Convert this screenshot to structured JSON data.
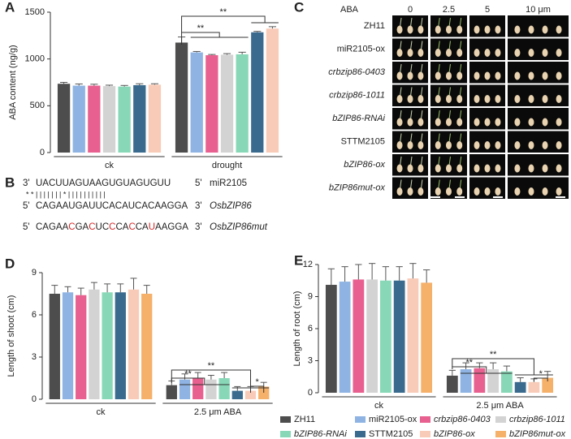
{
  "panel_labels": [
    "A",
    "B",
    "C",
    "D",
    "E"
  ],
  "sequences": {
    "mirna": {
      "prefix": "3'",
      "seq": "UACUUAGUAAGUGUAGUGUU",
      "suffix": "5'",
      "name": "miR2105"
    },
    "pairing": "* * | | | | | | | * | | | | | | | | | |",
    "target": {
      "prefix": "5'",
      "seq": "CAGAAUGAUUCACAUCACAAGGA",
      "suffix": "3'",
      "name": "OsbZIP86"
    },
    "mutant": {
      "prefix": "5'",
      "segments": [
        "CAGAA",
        "C",
        "GA",
        "C",
        "UC",
        "C",
        "CA",
        "C",
        "CA",
        "U",
        "AAGGA"
      ],
      "suffix": "3'",
      "name": "OsbZIP86mut"
    }
  },
  "photo_panel": {
    "header": "ABA",
    "columns": [
      "0",
      "2.5",
      "5",
      "10 μm"
    ],
    "rows": [
      "ZH11",
      "miR2105-ox",
      "crbzip86-0403",
      "crbzip86-1011",
      "bZIP86-RNAi",
      "STTM2105",
      "bZIP86-ox",
      "bZIP86mut-ox"
    ]
  },
  "chart_data": [
    {
      "type": "bar",
      "y_label": "ABA content (ng/g)",
      "categories": [
        "ck",
        "drought"
      ],
      "ylim": [
        0,
        1500
      ],
      "yticks": [
        0,
        500,
        1000,
        1500
      ],
      "annotations": [
        "**",
        "**"
      ],
      "series": [
        {
          "color": "#4d4d4d",
          "values": [
            735,
            1175
          ],
          "errors": [
            15,
            60
          ]
        },
        {
          "color": "#8fb4e3",
          "values": [
            715,
            1070
          ],
          "errors": [
            18,
            10
          ]
        },
        {
          "color": "#e8608f",
          "values": [
            715,
            1040
          ],
          "errors": [
            15,
            8
          ]
        },
        {
          "color": "#d3d3d3",
          "values": [
            710,
            1045
          ],
          "errors": [
            10,
            12
          ]
        },
        {
          "color": "#88d8b8",
          "values": [
            705,
            1050
          ],
          "errors": [
            12,
            22
          ]
        },
        {
          "color": "#3a6a8e",
          "values": [
            720,
            1285
          ],
          "errors": [
            15,
            10
          ]
        },
        {
          "color": "#f8cbb8",
          "values": [
            725,
            1325
          ],
          "errors": [
            10,
            20
          ]
        }
      ]
    },
    {
      "type": "bar",
      "y_label": "Length of shoot (cm)",
      "categories": [
        "ck",
        "2.5 μm ABA"
      ],
      "ylim": [
        0,
        9
      ],
      "yticks": [
        0,
        3,
        6,
        9
      ],
      "annotations": [
        "**",
        "**",
        "*"
      ],
      "series": [
        {
          "name": "ZH11",
          "color": "#4d4d4d",
          "values": [
            7.5,
            1.0
          ],
          "errors": [
            0.6,
            0.3
          ]
        },
        {
          "name": "miR2105-ox",
          "color": "#8fb4e3",
          "values": [
            7.6,
            1.4
          ],
          "errors": [
            0.4,
            0.4
          ]
        },
        {
          "name": "crbzip86-0403",
          "color": "#e8608f",
          "values": [
            7.4,
            1.5
          ],
          "errors": [
            0.5,
            0.4
          ]
        },
        {
          "name": "crbzip86-1011",
          "color": "#d3d3d3",
          "values": [
            7.8,
            1.4
          ],
          "errors": [
            0.5,
            0.3
          ]
        },
        {
          "name": "bZIP86-RNAi",
          "color": "#88d8b8",
          "values": [
            7.6,
            1.5
          ],
          "errors": [
            0.6,
            0.4
          ]
        },
        {
          "name": "STTM2105",
          "color": "#3a6a8e",
          "values": [
            7.6,
            0.6
          ],
          "errors": [
            0.6,
            0.3
          ]
        },
        {
          "name": "bZIP86-ox",
          "color": "#f8cbb8",
          "values": [
            7.8,
            0.6
          ],
          "errors": [
            0.8,
            0.3
          ]
        },
        {
          "name": "bZIP86mut-ox",
          "color": "#f5b06a",
          "values": [
            7.5,
            0.9
          ],
          "errors": [
            0.6,
            0.3
          ]
        }
      ]
    },
    {
      "type": "bar",
      "y_label": "Length of root (cm)",
      "categories": [
        "ck",
        "2.5 μm ABA"
      ],
      "ylim": [
        0,
        12
      ],
      "yticks": [
        0,
        3,
        6,
        9,
        12
      ],
      "annotations": [
        "**",
        "**",
        "*"
      ],
      "series": [
        {
          "color": "#4d4d4d",
          "values": [
            10.1,
            1.6
          ],
          "errors": [
            1.5,
            0.5
          ]
        },
        {
          "color": "#8fb4e3",
          "values": [
            10.4,
            2.2
          ],
          "errors": [
            1.4,
            0.6
          ]
        },
        {
          "color": "#e8608f",
          "values": [
            10.6,
            2.3
          ],
          "errors": [
            1.4,
            0.5
          ]
        },
        {
          "color": "#d3d3d3",
          "values": [
            10.6,
            2.2
          ],
          "errors": [
            1.5,
            0.6
          ]
        },
        {
          "color": "#88d8b8",
          "values": [
            10.5,
            2.0
          ],
          "errors": [
            1.3,
            0.5
          ]
        },
        {
          "color": "#3a6a8e",
          "values": [
            10.5,
            1.0
          ],
          "errors": [
            1.3,
            0.4
          ]
        },
        {
          "color": "#f8cbb8",
          "values": [
            10.7,
            1.0
          ],
          "errors": [
            1.4,
            0.3
          ]
        },
        {
          "color": "#f5b06a",
          "values": [
            10.3,
            1.4
          ],
          "errors": [
            1.2,
            0.6
          ]
        }
      ]
    }
  ]
}
